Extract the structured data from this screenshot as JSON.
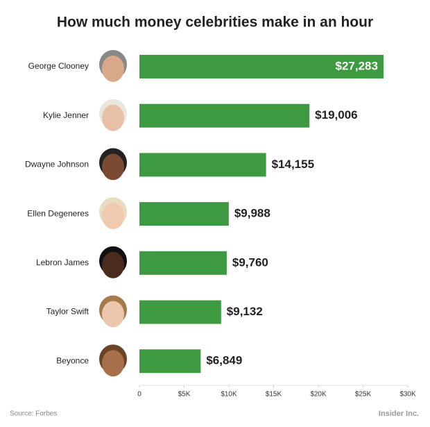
{
  "chart_data": {
    "type": "bar",
    "orientation": "horizontal",
    "title": "How much money celebrities make in an hour",
    "categories": [
      "George Clooney",
      "Kylie Jenner",
      "Dwayne Johnson",
      "Ellen Degeneres",
      "Lebron James",
      "Taylor Swift",
      "Beyonce"
    ],
    "values": [
      27283,
      19006,
      14155,
      9988,
      9760,
      9132,
      6849
    ],
    "value_labels": [
      "$27,283",
      "$19,006",
      "$14,155",
      "$9,988",
      "$9,760",
      "$9,132",
      "$6,849"
    ],
    "color": "#3d9a40",
    "xlim": [
      0,
      30000
    ],
    "xticks": [
      0,
      {
        "value": 5000,
        "label": "$5K"
      },
      {
        "value": 10000,
        "label": "$10K"
      },
      {
        "value": 15000,
        "label": "$15K"
      },
      {
        "value": 20000,
        "label": "$20K"
      },
      {
        "value": 25000,
        "label": "$25K"
      },
      {
        "value": 30000,
        "label": "$30K"
      }
    ],
    "source": "Source: Forbes",
    "brand": "Insider Inc."
  }
}
